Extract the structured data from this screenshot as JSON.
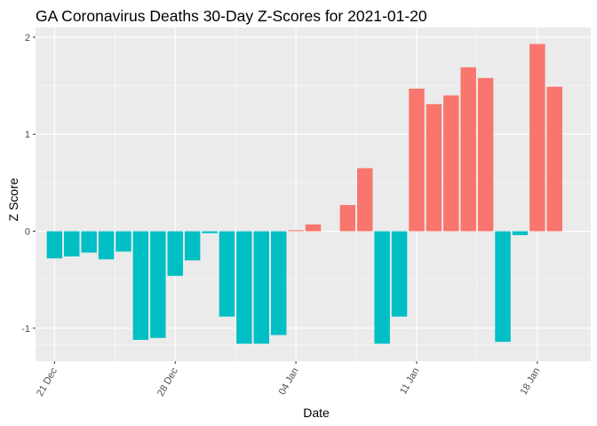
{
  "chart_data": {
    "type": "bar",
    "title": "GA Coronavirus Deaths 30-Day Z-Scores for 2021-01-20",
    "xlabel": "Date",
    "ylabel": "Z Score",
    "x_tick_labels": [
      "21 Dec",
      "28 Dec",
      "04 Jan",
      "11 Jan",
      "18 Jan"
    ],
    "y_tick_labels": [
      "-1",
      "0",
      "1",
      "2"
    ],
    "y_ticks": [
      -1,
      0,
      1,
      2
    ],
    "ylim": [
      -1.34,
      2.1
    ],
    "grid": true,
    "legend": "none",
    "colors": {
      "positive": "#F8766D",
      "negative": "#00BFC4",
      "panel": "#EBEBEB",
      "grid": "#FFFFFF"
    },
    "categories": [
      "2020-12-21",
      "2020-12-22",
      "2020-12-23",
      "2020-12-24",
      "2020-12-25",
      "2020-12-26",
      "2020-12-27",
      "2020-12-28",
      "2020-12-29",
      "2020-12-30",
      "2020-12-31",
      "2021-01-01",
      "2021-01-02",
      "2021-01-03",
      "2021-01-04",
      "2021-01-05",
      "2021-01-06",
      "2021-01-07",
      "2021-01-08",
      "2021-01-09",
      "2021-01-10",
      "2021-01-11",
      "2021-01-12",
      "2021-01-13",
      "2021-01-14",
      "2021-01-15",
      "2021-01-16",
      "2021-01-17",
      "2021-01-18",
      "2021-01-19",
      "2021-01-20"
    ],
    "values": [
      -0.28,
      -0.26,
      -0.22,
      -0.29,
      -0.21,
      -1.12,
      -1.1,
      -0.46,
      -0.3,
      -0.02,
      -0.88,
      -1.16,
      -1.16,
      -1.07,
      0.01,
      0.07,
      null,
      0.27,
      0.65,
      -1.16,
      -0.88,
      1.47,
      1.31,
      1.4,
      1.69,
      1.58,
      -1.14,
      -0.04,
      1.93,
      1.49,
      null
    ]
  }
}
